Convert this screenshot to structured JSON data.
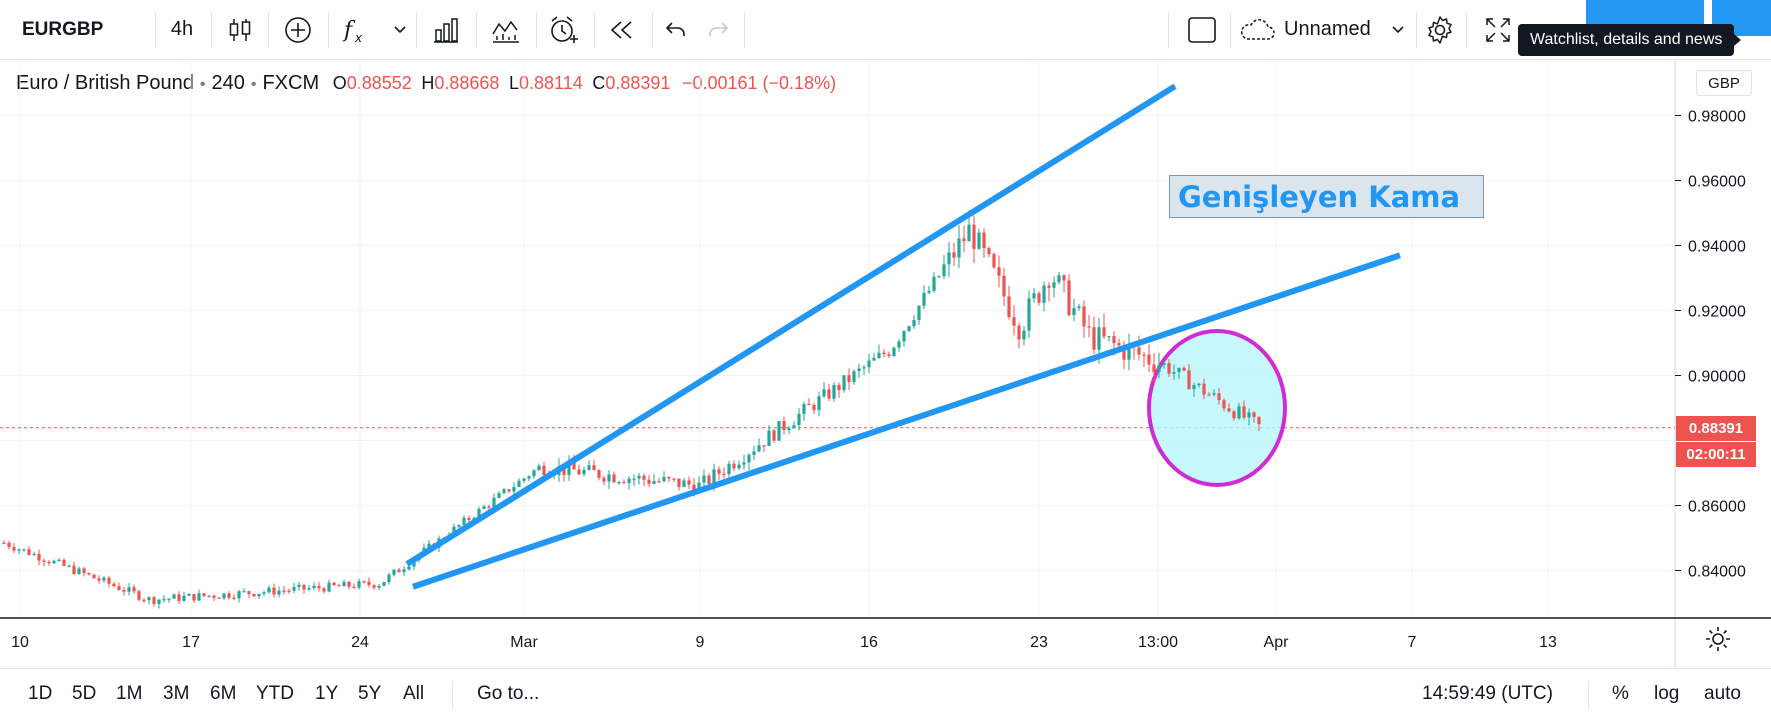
{
  "toolbar": {
    "symbol": "EURGBP",
    "interval": "4h",
    "layout_name": "Unnamed",
    "tooltip": "Watchlist, details and news"
  },
  "legend": {
    "name": "Euro / British Pound",
    "interval": "240",
    "exchange": "FXCM",
    "o_label": "O",
    "o_value": "0.88552",
    "h_label": "H",
    "h_value": "0.88668",
    "l_label": "L",
    "l_value": "0.88114",
    "c_label": "C",
    "c_value": "0.88391",
    "change": "−0.00161 (−0.18%)"
  },
  "annotation": "Genişleyen Kama",
  "price_axis": {
    "currency": "GBP",
    "ticks": [
      "0.98000",
      "0.96000",
      "0.94000",
      "0.92000",
      "0.90000",
      "0.86000",
      "0.84000"
    ],
    "last_price": "0.88391",
    "countdown": "02:00:11"
  },
  "time_axis": {
    "ticks": [
      "10",
      "17",
      "24",
      "Mar",
      "9",
      "16",
      "23",
      "13:00",
      "Apr",
      "7",
      "13"
    ]
  },
  "bottom": {
    "ranges": [
      "1D",
      "5D",
      "1M",
      "3M",
      "6M",
      "YTD",
      "1Y",
      "5Y",
      "All"
    ],
    "goto": "Go to...",
    "clock": "14:59:49 (UTC)",
    "percent": "%",
    "log": "log",
    "auto": "auto"
  },
  "colors": {
    "up": "#26a69a",
    "down": "#ef5350",
    "line": "#2196f3",
    "circle_stroke": "#d02cd6",
    "circle_fill": "#b3f6fc"
  },
  "chart_data": {
    "type": "candlestick",
    "symbol": "EURGBP",
    "last": 0.88391,
    "x": [
      "10",
      "17",
      "24",
      "Mar",
      "9",
      "16",
      "23",
      "13:00",
      "Apr",
      "7",
      "13"
    ],
    "close_path": [
      [
        "10",
        0.849
      ],
      [
        "17",
        0.831
      ],
      [
        "24",
        0.836
      ],
      [
        "Mar",
        0.872
      ],
      [
        "9",
        0.866
      ],
      [
        "16",
        0.908
      ],
      [
        "19",
        0.945
      ],
      [
        "22",
        0.915
      ],
      [
        "23",
        0.932
      ],
      [
        "26",
        0.912
      ],
      [
        "13:00",
        0.904
      ],
      [
        "30",
        0.884
      ]
    ],
    "trendlines": [
      {
        "from": [
          "26 Feb",
          0.842
        ],
        "to": [
          "20 Mar",
          0.989
        ]
      },
      {
        "from": [
          "26 Feb",
          0.835
        ],
        "to": [
          "7 Apr",
          0.937
        ]
      }
    ],
    "ylim": [
      0.822,
      0.995
    ]
  }
}
